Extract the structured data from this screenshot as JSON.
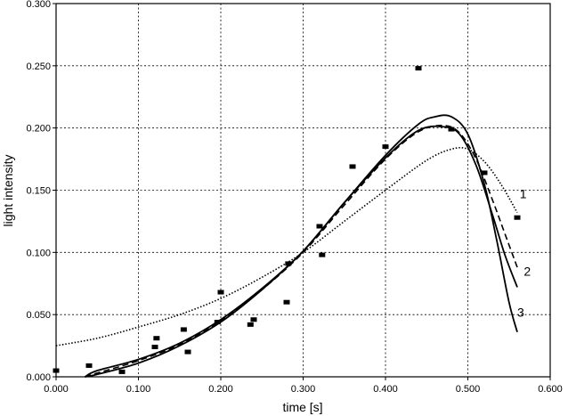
{
  "chart_data": {
    "type": "scatter",
    "title": "",
    "xlabel": "time [s]",
    "ylabel": "light intensity",
    "xlim": [
      0,
      0.6
    ],
    "ylim": [
      0,
      0.3
    ],
    "grid": true,
    "legend": "none",
    "x_ticks": [
      "0.000",
      "0.100",
      "0.200",
      "0.300",
      "0.400",
      "0.500",
      "0.600"
    ],
    "y_ticks": [
      "0.000",
      "0.050",
      "0.100",
      "0.150",
      "0.200",
      "0.250",
      "0.300"
    ],
    "measured_points": [
      {
        "x": 0.0,
        "y": 0.005
      },
      {
        "x": 0.04,
        "y": 0.009
      },
      {
        "x": 0.08,
        "y": 0.004
      },
      {
        "x": 0.12,
        "y": 0.024
      },
      {
        "x": 0.122,
        "y": 0.031
      },
      {
        "x": 0.155,
        "y": 0.038
      },
      {
        "x": 0.16,
        "y": 0.02
      },
      {
        "x": 0.196,
        "y": 0.044
      },
      {
        "x": 0.2,
        "y": 0.068
      },
      {
        "x": 0.236,
        "y": 0.042
      },
      {
        "x": 0.24,
        "y": 0.046
      },
      {
        "x": 0.28,
        "y": 0.06
      },
      {
        "x": 0.282,
        "y": 0.091
      },
      {
        "x": 0.32,
        "y": 0.121
      },
      {
        "x": 0.323,
        "y": 0.098
      },
      {
        "x": 0.36,
        "y": 0.169
      },
      {
        "x": 0.4,
        "y": 0.185
      },
      {
        "x": 0.44,
        "y": 0.248
      },
      {
        "x": 0.48,
        "y": 0.199
      },
      {
        "x": 0.52,
        "y": 0.164
      },
      {
        "x": 0.56,
        "y": 0.128
      }
    ],
    "series": [
      {
        "label": "1",
        "style": "dotted",
        "x": [
          0.0,
          0.05,
          0.1,
          0.15,
          0.2,
          0.25,
          0.3,
          0.35,
          0.4,
          0.45,
          0.48,
          0.5,
          0.52,
          0.54,
          0.56
        ],
        "y": [
          0.025,
          0.031,
          0.04,
          0.05,
          0.063,
          0.08,
          0.1,
          0.125,
          0.15,
          0.174,
          0.183,
          0.183,
          0.173,
          0.155,
          0.132
        ]
      },
      {
        "label": "2",
        "style": "dashed",
        "x": [
          0.035,
          0.05,
          0.1,
          0.15,
          0.2,
          0.25,
          0.3,
          0.35,
          0.4,
          0.44,
          0.47,
          0.49,
          0.51,
          0.53,
          0.545,
          0.56
        ],
        "y": [
          0.0,
          0.003,
          0.013,
          0.026,
          0.045,
          0.07,
          0.1,
          0.138,
          0.175,
          0.197,
          0.202,
          0.196,
          0.175,
          0.142,
          0.115,
          0.088
        ]
      },
      {
        "label": "3",
        "style": "solid",
        "x": [
          0.035,
          0.05,
          0.1,
          0.15,
          0.2,
          0.25,
          0.3,
          0.35,
          0.4,
          0.44,
          0.46,
          0.48,
          0.5,
          0.52,
          0.535,
          0.55,
          0.56
        ],
        "y": [
          0.0,
          0.005,
          0.014,
          0.027,
          0.046,
          0.071,
          0.101,
          0.14,
          0.178,
          0.203,
          0.209,
          0.209,
          0.195,
          0.155,
          0.11,
          0.06,
          0.036
        ]
      },
      {
        "label": "",
        "style": "solid",
        "x": [
          0.035,
          0.05,
          0.1,
          0.15,
          0.2,
          0.25,
          0.3,
          0.35,
          0.4,
          0.44,
          0.47,
          0.49,
          0.51,
          0.53,
          0.545,
          0.56
        ],
        "y": [
          0.0,
          0.002,
          0.011,
          0.025,
          0.044,
          0.07,
          0.101,
          0.14,
          0.176,
          0.198,
          0.201,
          0.195,
          0.17,
          0.13,
          0.098,
          0.072
        ]
      }
    ]
  }
}
